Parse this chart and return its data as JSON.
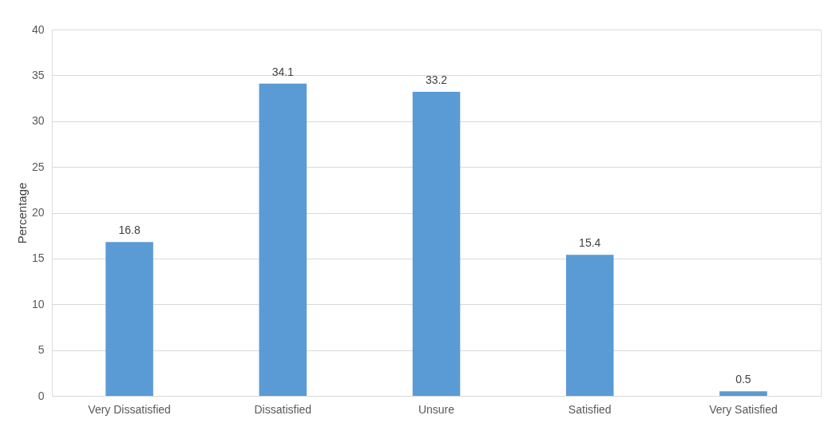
{
  "chart_data": {
    "type": "bar",
    "ylabel": "Percentage",
    "categories": [
      "Very Dissatisfied",
      "Dissatisfied",
      "Unsure",
      "Satisfied",
      "Very Satisfied"
    ],
    "values": [
      16.8,
      34.1,
      33.2,
      15.4,
      0.5
    ],
    "color": "#5b9bd5",
    "ylim": [
      0,
      40
    ],
    "yticks": [
      0,
      5,
      10,
      15,
      20,
      25,
      30,
      35,
      40
    ],
    "grid": "y",
    "data_labels": true
  }
}
